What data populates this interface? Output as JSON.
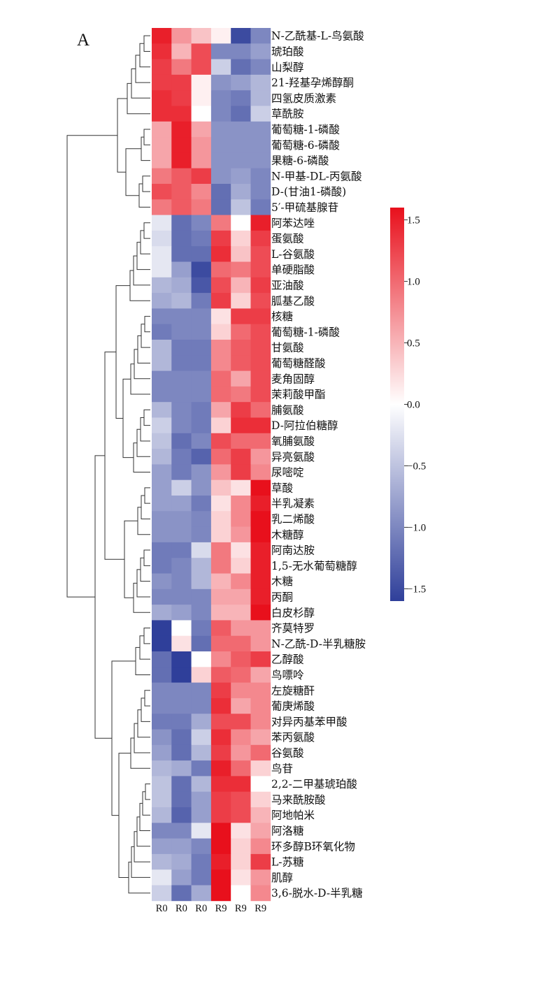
{
  "panel_label": "A",
  "chart_data": {
    "type": "heatmap",
    "columns": [
      "R0",
      "R0",
      "R0",
      "R9",
      "R9",
      "R9"
    ],
    "rows": [
      "N-乙酰基-L-鸟氨酸",
      "琥珀酸",
      "山梨醇",
      "21-羟基孕烯醇酮",
      "四氢皮质激素",
      "草酰胺",
      "葡萄糖-1-磷酸",
      "葡萄糖-6-磷酸",
      "果糖-6-磷酸",
      "N-甲基-DL-丙氨酸",
      "D-(甘油1-磷酸)",
      "5′-甲硫基腺苷",
      "阿苯达唑",
      "蛋氨酸",
      "L-谷氨酸",
      "单硬脂酸",
      "亚油酸",
      "胍基乙酸",
      "核糖",
      "葡萄糖-1-磷酸",
      "甘氨酸",
      "葡萄糖醛酸",
      "麦角固醇",
      "茉莉酸甲酯",
      "脯氨酸",
      "D-阿拉伯糖醇",
      "氧脯氨酸",
      "异亮氨酸",
      "尿嘧啶",
      "草酸",
      "半乳凝素",
      "乳二烯酸",
      "木糖醇",
      "阿南达胺",
      "1,5-无水葡萄糖醇",
      "木糖",
      "丙酮",
      "白皮杉醇",
      "齐莫特罗",
      "N-乙酰-D-半乳糖胺",
      "乙醇酸",
      "鸟嘌呤",
      "左旋糖酐",
      "葡庚烯酸",
      "对异丙基苯甲酸",
      "苯丙氨酸",
      "谷氨酸",
      "鸟苷",
      "2,2-二甲基琥珀酸",
      "马来酰胺酸",
      "阿地帕米",
      "阿洛糖",
      "环多醇B环氧化物",
      "L-苏糖",
      "肌醇",
      "3,6-脱水-D-半乳糖"
    ],
    "values": [
      [
        1.5,
        0.7,
        0.4,
        0.1,
        -1.5,
        -1.0
      ],
      [
        1.4,
        0.5,
        1.2,
        -1.0,
        -1.0,
        -0.8
      ],
      [
        1.3,
        0.9,
        1.2,
        -0.4,
        -1.2,
        -1.0
      ],
      [
        1.3,
        1.3,
        0.1,
        -0.9,
        -0.8,
        -0.6
      ],
      [
        1.4,
        1.3,
        0.1,
        -1.0,
        -1.1,
        -0.6
      ],
      [
        1.4,
        1.4,
        0.0,
        -1.0,
        -1.2,
        -0.4
      ],
      [
        0.6,
        1.5,
        0.6,
        -0.9,
        -0.9,
        -0.9
      ],
      [
        0.6,
        1.5,
        0.7,
        -0.9,
        -0.9,
        -0.9
      ],
      [
        0.6,
        1.5,
        0.7,
        -0.9,
        -0.9,
        -0.9
      ],
      [
        0.9,
        1.1,
        1.3,
        -0.9,
        -0.8,
        -1.0
      ],
      [
        1.2,
        1.1,
        0.8,
        -1.2,
        -0.7,
        -1.0
      ],
      [
        0.9,
        1.1,
        0.9,
        -1.2,
        -0.5,
        -1.1
      ],
      [
        -0.2,
        -1.2,
        -1.0,
        0.9,
        0.0,
        1.5
      ],
      [
        -0.3,
        -1.2,
        -1.1,
        1.3,
        0.3,
        1.3
      ],
      [
        -0.2,
        -1.2,
        -1.2,
        1.4,
        0.4,
        1.2
      ],
      [
        -0.2,
        -0.8,
        -1.5,
        1.0,
        0.9,
        1.2
      ],
      [
        -0.6,
        -0.7,
        -1.4,
        1.2,
        0.5,
        1.3
      ],
      [
        -0.7,
        -0.6,
        -1.1,
        1.3,
        0.3,
        1.2
      ],
      [
        -1.0,
        -1.0,
        -1.0,
        0.2,
        1.3,
        1.3
      ],
      [
        -1.1,
        -1.0,
        -1.0,
        0.3,
        1.0,
        1.2
      ],
      [
        -0.6,
        -1.1,
        -1.1,
        0.8,
        1.1,
        1.2
      ],
      [
        -0.6,
        -1.1,
        -1.1,
        0.8,
        1.1,
        1.2
      ],
      [
        -1.0,
        -1.0,
        -1.0,
        1.0,
        0.6,
        1.2
      ],
      [
        -1.0,
        -1.0,
        -1.0,
        1.0,
        0.9,
        1.2
      ],
      [
        -0.6,
        -1.0,
        -1.1,
        0.6,
        1.3,
        1.0
      ],
      [
        -0.4,
        -1.0,
        -1.1,
        0.3,
        1.4,
        1.4
      ],
      [
        -0.5,
        -1.2,
        -1.0,
        1.2,
        1.0,
        1.0
      ],
      [
        -0.6,
        -1.1,
        -1.3,
        1.0,
        1.3,
        0.7
      ],
      [
        -0.8,
        -1.1,
        -0.9,
        0.7,
        1.3,
        0.8
      ],
      [
        -0.8,
        -0.4,
        -0.9,
        0.4,
        0.2,
        1.6
      ],
      [
        -0.8,
        -0.8,
        -1.1,
        0.2,
        0.8,
        1.5
      ],
      [
        -0.9,
        -0.9,
        -1.0,
        0.3,
        0.8,
        1.6
      ],
      [
        -0.9,
        -0.9,
        -1.0,
        0.3,
        0.7,
        1.6
      ],
      [
        -1.1,
        -1.1,
        -0.3,
        0.9,
        0.2,
        1.5
      ],
      [
        -1.1,
        -1.0,
        -0.6,
        0.9,
        0.3,
        1.5
      ],
      [
        -0.9,
        -1.0,
        -0.6,
        0.5,
        0.8,
        1.5
      ],
      [
        -1.0,
        -1.0,
        -1.0,
        0.6,
        0.6,
        1.5
      ],
      [
        -0.7,
        -0.8,
        -1.0,
        0.5,
        0.5,
        1.6
      ],
      [
        -1.6,
        0.0,
        -1.1,
        1.1,
        0.7,
        0.7
      ],
      [
        -1.6,
        0.2,
        -1.2,
        1.0,
        1.0,
        0.7
      ],
      [
        -1.2,
        -1.6,
        0.0,
        0.8,
        1.1,
        1.3
      ],
      [
        -1.2,
        -1.6,
        0.3,
        1.1,
        1.0,
        0.6
      ],
      [
        -1.0,
        -1.0,
        -1.0,
        1.3,
        0.8,
        0.8
      ],
      [
        -1.0,
        -1.0,
        -1.0,
        1.4,
        0.6,
        0.8
      ],
      [
        -1.1,
        -1.1,
        -0.7,
        1.2,
        1.2,
        0.8
      ],
      [
        -0.9,
        -1.2,
        -0.4,
        1.4,
        0.8,
        0.6
      ],
      [
        -0.8,
        -1.2,
        -0.6,
        1.3,
        0.7,
        1.0
      ],
      [
        -0.6,
        -0.7,
        -1.1,
        1.5,
        1.0,
        0.3
      ],
      [
        -0.5,
        -1.2,
        -0.6,
        1.4,
        1.4,
        0.0
      ],
      [
        -0.5,
        -1.2,
        -0.8,
        1.3,
        1.2,
        0.3
      ],
      [
        -0.6,
        -1.3,
        -0.8,
        1.3,
        1.2,
        0.5
      ],
      [
        -1.0,
        -1.0,
        -0.2,
        1.6,
        0.2,
        0.6
      ],
      [
        -0.8,
        -0.8,
        -1.0,
        1.6,
        0.3,
        0.8
      ],
      [
        -0.6,
        -0.7,
        -1.1,
        1.5,
        0.3,
        1.3
      ],
      [
        -0.2,
        -0.8,
        -1.1,
        1.6,
        0.2,
        0.7
      ],
      [
        -0.4,
        -1.2,
        -0.7,
        1.6,
        0.0,
        0.8
      ]
    ],
    "color_scale": {
      "min": -1.6,
      "max": 1.6,
      "low": "#2f3f9a",
      "mid": "#ffffff",
      "high": "#e8101c"
    },
    "colorbar_ticks": [
      "1.5",
      "1.0",
      "0.5",
      "0.0",
      "−0.5",
      "−1.0",
      "−1.5"
    ],
    "colorbar_values": [
      1.5,
      1.0,
      0.5,
      0.0,
      -0.5,
      -1.0,
      -1.5
    ]
  }
}
